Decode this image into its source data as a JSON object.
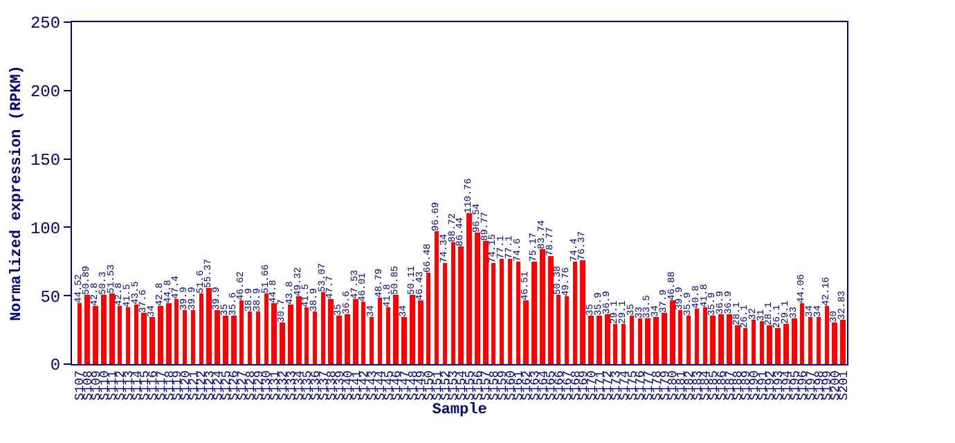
{
  "chart_data": {
    "type": "bar",
    "xlabel": "Sample",
    "ylabel": "Normalized expression (RPKM)",
    "categories": [
      "S107",
      "S108",
      "S109",
      "S110",
      "S111",
      "S112",
      "S113",
      "S114",
      "S115",
      "S116",
      "S117",
      "S118",
      "S119",
      "S120",
      "S121",
      "S122",
      "S123",
      "S124",
      "S125",
      "S126",
      "S127",
      "S128",
      "S129",
      "S130",
      "S131",
      "S132",
      "S133",
      "S134",
      "S135",
      "S136",
      "S137",
      "S138",
      "S139",
      "S140",
      "S141",
      "S142",
      "S143",
      "S144",
      "S145",
      "S146",
      "S147",
      "S148",
      "S149",
      "S150",
      "S151",
      "S152",
      "S153",
      "S154",
      "S155",
      "S156",
      "S157",
      "S158",
      "S159",
      "S160",
      "S161",
      "S162",
      "S163",
      "S164",
      "S165",
      "S166",
      "S167",
      "S168",
      "S169",
      "S170",
      "S171",
      "S172",
      "S173",
      "S174",
      "S175",
      "S176",
      "S177",
      "S178",
      "S179",
      "S180",
      "S181",
      "S182",
      "S183",
      "S184",
      "S185",
      "S186",
      "S187",
      "S188",
      "S189",
      "S190",
      "S191",
      "S192",
      "S193",
      "S194",
      "S195",
      "S196",
      "S197",
      "S198",
      "S199",
      "S200",
      "S201"
    ],
    "values": [
      44.52,
      50.89,
      42.8,
      50.3,
      51.53,
      42.8,
      41.5,
      43.5,
      37.6,
      34.0,
      42.8,
      44.8,
      47.4,
      39.9,
      39.9,
      51.6,
      55.37,
      39.9,
      35.0,
      35.6,
      46.62,
      38.9,
      38.9,
      51.66,
      44.8,
      30.7,
      43.8,
      49.32,
      41.5,
      38.9,
      53.07,
      47.7,
      35.0,
      36.6,
      47.53,
      46.01,
      34.0,
      48.79,
      41.8,
      50.85,
      34.0,
      50.11,
      46.43,
      66.48,
      96.69,
      74.34,
      88.72,
      86.44,
      110.76,
      96.54,
      89.77,
      74.15,
      77.1,
      77.1,
      74.6,
      46.51,
      75.17,
      83.74,
      78.77,
      50.38,
      49.76,
      74.4,
      76.37,
      35.0,
      35.9,
      36.9,
      29.1,
      29.1,
      35.0,
      33.0,
      33.5,
      34.0,
      37.9,
      46.88,
      39.9,
      35.9,
      40.8,
      41.8,
      35.9,
      36.9,
      36.9,
      28.1,
      26.1,
      32.0,
      31.0,
      28.1,
      26.1,
      29.1,
      33.0,
      44.06,
      34.0,
      34.0,
      42.16,
      30.0,
      32.83
    ],
    "color": "#ff0000",
    "ylim": [
      0,
      250
    ],
    "yticks": [
      0,
      50,
      100,
      150,
      200,
      250
    ],
    "data_labels": true
  }
}
